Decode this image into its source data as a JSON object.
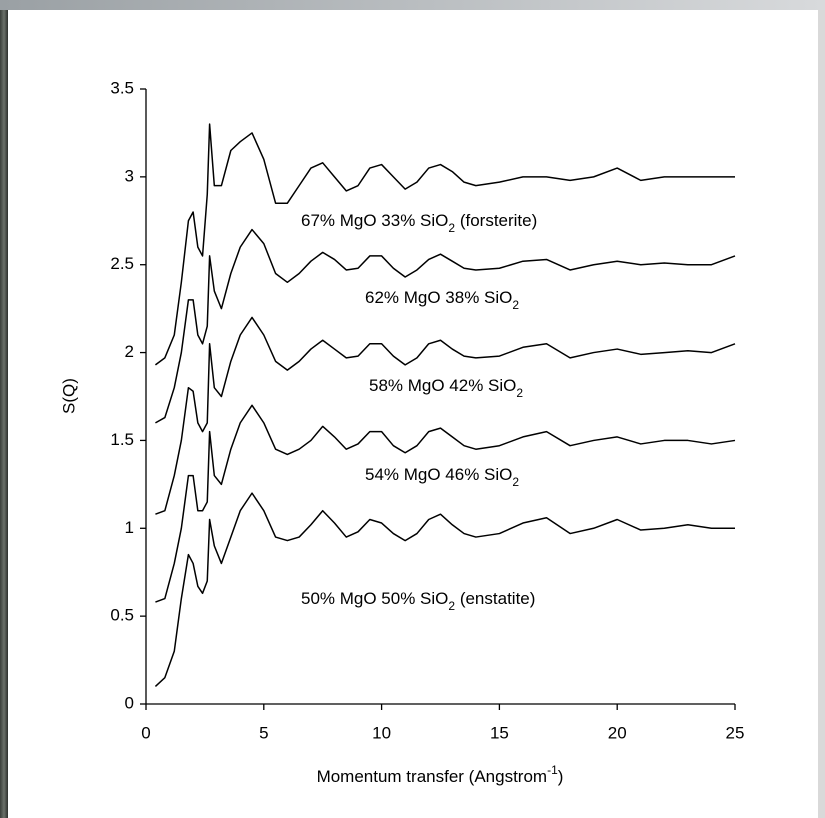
{
  "chart_data": {
    "type": "line",
    "ylabel": "S(Q)",
    "xlabel": [
      "Momentum transfer (Angstrom",
      "-1",
      ")"
    ],
    "x": [
      0.4,
      0.8,
      1.2,
      1.5,
      1.8,
      2.0,
      2.2,
      2.4,
      2.6,
      2.7,
      2.9,
      3.2,
      3.6,
      4.0,
      4.5,
      5.0,
      5.5,
      6.0,
      6.5,
      7.0,
      7.5,
      8.0,
      8.5,
      9.0,
      9.5,
      10.0,
      10.5,
      11.0,
      11.5,
      12.0,
      12.5,
      13.0,
      13.5,
      14.0,
      15.0,
      16.0,
      17.0,
      18.0,
      19.0,
      20.0,
      21.0,
      22.0,
      23.0,
      24.0,
      25.0
    ],
    "series": [
      {
        "color": "#000000",
        "values": [
          1.93,
          1.97,
          2.1,
          2.4,
          2.75,
          2.8,
          2.6,
          2.55,
          2.9,
          3.3,
          2.95,
          2.95,
          3.15,
          3.2,
          3.25,
          3.1,
          2.85,
          2.85,
          2.95,
          3.05,
          3.08,
          3.0,
          2.92,
          2.95,
          3.05,
          3.07,
          3.0,
          2.93,
          2.97,
          3.05,
          3.07,
          3.03,
          2.97,
          2.95,
          2.97,
          3.0,
          3.0,
          2.98,
          3.0,
          3.05,
          2.98,
          3.0,
          3.0,
          3.0,
          3.0
        ]
      },
      {
        "color": "#000000",
        "values": [
          1.6,
          1.63,
          1.8,
          2.0,
          2.3,
          2.3,
          2.1,
          2.05,
          2.15,
          2.55,
          2.35,
          2.25,
          2.45,
          2.6,
          2.7,
          2.62,
          2.45,
          2.4,
          2.45,
          2.52,
          2.57,
          2.53,
          2.47,
          2.48,
          2.55,
          2.55,
          2.48,
          2.43,
          2.47,
          2.53,
          2.56,
          2.52,
          2.48,
          2.47,
          2.48,
          2.52,
          2.53,
          2.47,
          2.5,
          2.52,
          2.5,
          2.51,
          2.5,
          2.5,
          2.55
        ]
      },
      {
        "color": "#000000",
        "values": [
          1.08,
          1.1,
          1.3,
          1.5,
          1.8,
          1.78,
          1.6,
          1.55,
          1.6,
          2.05,
          1.8,
          1.75,
          1.95,
          2.1,
          2.2,
          2.1,
          1.95,
          1.9,
          1.95,
          2.02,
          2.07,
          2.02,
          1.97,
          1.98,
          2.05,
          2.05,
          1.98,
          1.93,
          1.97,
          2.05,
          2.07,
          2.02,
          1.98,
          1.97,
          1.98,
          2.03,
          2.05,
          1.97,
          2.0,
          2.02,
          1.99,
          2.0,
          2.01,
          2.0,
          2.05
        ]
      },
      {
        "color": "#000000",
        "values": [
          0.58,
          0.6,
          0.8,
          1.0,
          1.3,
          1.3,
          1.1,
          1.1,
          1.15,
          1.55,
          1.3,
          1.25,
          1.45,
          1.6,
          1.7,
          1.6,
          1.45,
          1.42,
          1.45,
          1.5,
          1.58,
          1.52,
          1.45,
          1.48,
          1.55,
          1.55,
          1.47,
          1.43,
          1.47,
          1.55,
          1.57,
          1.52,
          1.47,
          1.45,
          1.47,
          1.52,
          1.55,
          1.47,
          1.5,
          1.52,
          1.48,
          1.5,
          1.5,
          1.48,
          1.5
        ]
      },
      {
        "color": "#000000",
        "values": [
          0.1,
          0.15,
          0.3,
          0.6,
          0.85,
          0.8,
          0.67,
          0.63,
          0.7,
          1.05,
          0.9,
          0.8,
          0.95,
          1.1,
          1.2,
          1.1,
          0.95,
          0.93,
          0.95,
          1.02,
          1.1,
          1.03,
          0.95,
          0.98,
          1.05,
          1.03,
          0.97,
          0.93,
          0.97,
          1.05,
          1.08,
          1.02,
          0.97,
          0.95,
          0.97,
          1.03,
          1.06,
          0.97,
          1.0,
          1.05,
          0.99,
          1.0,
          1.02,
          1.0,
          1.0
        ]
      }
    ],
    "annotations": [
      {
        "parts": [
          "67% MgO 33% SiO",
          "2",
          " (forsterite)"
        ]
      },
      {
        "parts": [
          "62% MgO 38% SiO",
          "2"
        ]
      },
      {
        "parts": [
          "58% MgO 42% SiO",
          "2"
        ]
      },
      {
        "parts": [
          "54% MgO 46% SiO",
          "2"
        ]
      },
      {
        "parts": [
          "50% MgO 50% SiO",
          "2",
          " (enstatite)"
        ]
      }
    ],
    "xlim": [
      0,
      25
    ],
    "xticks": [
      0,
      5,
      10,
      15,
      20,
      25
    ],
    "ylim": [
      0,
      3.5
    ],
    "yticks": [
      0,
      0.5,
      1,
      1.5,
      2,
      2.5,
      3,
      3.5
    ]
  }
}
